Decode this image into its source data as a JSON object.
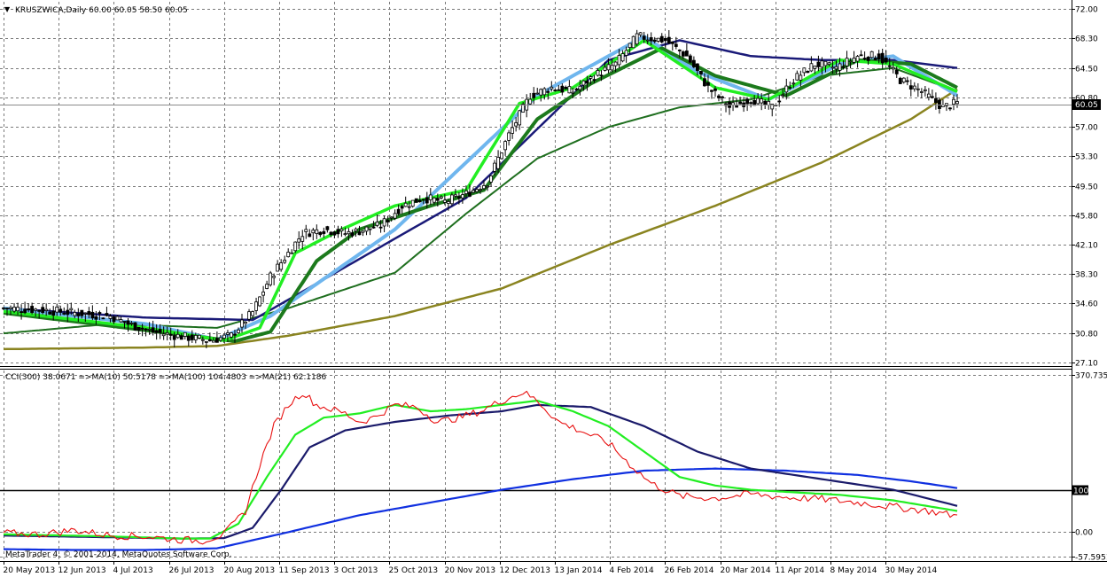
{
  "header": {
    "symbol_line": "KRUSZWICA,Daily  60.00 60.05 58.50 60.05"
  },
  "indicator_header": "CCI(300) 38.0671  =>MA(10) 50.5178  =>MA(100) 104.4803  =>MA(21) 62.1186",
  "copyright": "MetaTrader 4, © 2001-2014, MetaQuotes Software Corp.",
  "colors": {
    "background": "#ffffff",
    "candle": "#000000",
    "ma_fast_light": "#22ee22",
    "ma_fast_dark": "#1c7a1c",
    "ma_mid_green": "#1f6f1f",
    "ma_long_olive": "#8a8420",
    "ma_lightblue": "#6fb6ee",
    "ma_navy": "#1a1a78",
    "cci_line": "#e81010",
    "cci_ma10": "#22ee22",
    "cci_ma21": "#1a1a6a",
    "cci_ma100": "#1030e0"
  },
  "chart_data": [
    {
      "type": "candlestick",
      "title": "KRUSZWICA,Daily",
      "ohlc_last": {
        "open": 60.0,
        "high": 60.05,
        "low": 58.5,
        "close": 60.05
      },
      "current_price": "60.05",
      "ylim": [
        27.1,
        72.0
      ],
      "y_ticks": [
        "72.00",
        "68.30",
        "64.50",
        "60.80",
        "57.00",
        "53.30",
        "49.50",
        "45.80",
        "42.10",
        "38.30",
        "34.60",
        "30.80",
        "27.10"
      ],
      "x_tick_labels": [
        "20 May 2013",
        "12 Jun 2013",
        "4 Jul 2013",
        "26 Jul 2013",
        "20 Aug 2013",
        "11 Sep 2013",
        "3 Oct 2013",
        "25 Oct 2013",
        "20 Nov 2013",
        "12 Dec 2013",
        "13 Jan 2014",
        "4 Feb 2014",
        "26 Feb 2014",
        "20 Mar 2014",
        "11 Apr 2014",
        "8 May 2014",
        "30 May 2014"
      ],
      "series": [
        {
          "name": "price",
          "kind": "close_approx",
          "bars": 269,
          "anchors": [
            [
              0,
              34.0
            ],
            [
              10,
              33.8
            ],
            [
              20,
              33.4
            ],
            [
              30,
              33.0
            ],
            [
              35,
              32.0
            ],
            [
              42,
              31.0
            ],
            [
              50,
              30.4
            ],
            [
              58,
              29.9
            ],
            [
              64,
              30.5
            ],
            [
              70,
              33.5
            ],
            [
              75,
              38.0
            ],
            [
              80,
              41.0
            ],
            [
              84,
              43.5
            ],
            [
              90,
              44.0
            ],
            [
              96,
              43.5
            ],
            [
              100,
              43.8
            ],
            [
              106,
              44.5
            ],
            [
              112,
              47.0
            ],
            [
              118,
              48.0
            ],
            [
              124,
              47.5
            ],
            [
              130,
              48.5
            ],
            [
              136,
              50.0
            ],
            [
              142,
              56.0
            ],
            [
              148,
              61.0
            ],
            [
              154,
              62.0
            ],
            [
              160,
              61.5
            ],
            [
              166,
              63.5
            ],
            [
              172,
              65.0
            ],
            [
              178,
              68.5
            ],
            [
              186,
              68.0
            ],
            [
              192,
              66.0
            ],
            [
              198,
              62.0
            ],
            [
              204,
              59.5
            ],
            [
              210,
              60.5
            ],
            [
              216,
              59.5
            ],
            [
              222,
              63.0
            ],
            [
              228,
              65.0
            ],
            [
              234,
              64.5
            ],
            [
              240,
              66.0
            ],
            [
              246,
              66.0
            ],
            [
              252,
              63.0
            ],
            [
              258,
              61.5
            ],
            [
              264,
              59.5
            ],
            [
              268,
              60.05
            ]
          ]
        },
        {
          "name": "ma_navy",
          "anchors": [
            [
              0,
              34.0
            ],
            [
              40,
              32.8
            ],
            [
              70,
              32.5
            ],
            [
              72,
              33.0
            ],
            [
              130,
              48.0
            ],
            [
              170,
              65.5
            ],
            [
              190,
              68.0
            ],
            [
              210,
              66.0
            ],
            [
              230,
              65.5
            ],
            [
              250,
              65.5
            ],
            [
              268,
              64.5
            ]
          ]
        },
        {
          "name": "ma_lightblue",
          "anchors": [
            [
              0,
              34.0
            ],
            [
              40,
              32.0
            ],
            [
              60,
              30.0
            ],
            [
              75,
              33.0
            ],
            [
              110,
              44.0
            ],
            [
              150,
              61.0
            ],
            [
              180,
              68.5
            ],
            [
              195,
              64.0
            ],
            [
              215,
              60.5
            ],
            [
              235,
              65.0
            ],
            [
              250,
              66.0
            ],
            [
              268,
              61.0
            ]
          ]
        },
        {
          "name": "ma_fast_light",
          "anchors": [
            [
              0,
              33.6
            ],
            [
              40,
              31.5
            ],
            [
              62,
              29.9
            ],
            [
              72,
              31.5
            ],
            [
              82,
              41.0
            ],
            [
              95,
              44.0
            ],
            [
              110,
              47.0
            ],
            [
              130,
              49.0
            ],
            [
              145,
              60.0
            ],
            [
              160,
              62.0
            ],
            [
              180,
              68.0
            ],
            [
              200,
              62.0
            ],
            [
              215,
              60.5
            ],
            [
              235,
              65.5
            ],
            [
              250,
              65.0
            ],
            [
              268,
              61.5
            ]
          ]
        },
        {
          "name": "ma_fast_dark",
          "anchors": [
            [
              0,
              33.4
            ],
            [
              40,
              31.2
            ],
            [
              65,
              29.8
            ],
            [
              75,
              31.0
            ],
            [
              88,
              40.0
            ],
            [
              100,
              44.0
            ],
            [
              120,
              47.0
            ],
            [
              135,
              49.0
            ],
            [
              150,
              58.0
            ],
            [
              165,
              62.5
            ],
            [
              185,
              67.0
            ],
            [
              200,
              63.5
            ],
            [
              220,
              61.0
            ],
            [
              240,
              65.5
            ],
            [
              255,
              65.0
            ],
            [
              268,
              62.0
            ]
          ]
        },
        {
          "name": "ma_mid_green",
          "anchors": [
            [
              0,
              30.8
            ],
            [
              30,
              32.0
            ],
            [
              60,
              31.5
            ],
            [
              80,
              34.0
            ],
            [
              110,
              38.5
            ],
            [
              130,
              46.0
            ],
            [
              150,
              53.0
            ],
            [
              170,
              57.0
            ],
            [
              190,
              59.5
            ],
            [
              210,
              60.5
            ],
            [
              230,
              63.5
            ],
            [
              250,
              64.5
            ],
            [
              268,
              61.5
            ]
          ]
        },
        {
          "name": "ma_long_olive",
          "anchors": [
            [
              0,
              28.8
            ],
            [
              40,
              29.0
            ],
            [
              60,
              29.2
            ],
            [
              80,
              30.5
            ],
            [
              110,
              33.0
            ],
            [
              140,
              36.5
            ],
            [
              170,
              42.0
            ],
            [
              200,
              47.0
            ],
            [
              230,
              52.5
            ],
            [
              255,
              58.0
            ],
            [
              268,
              61.8
            ]
          ]
        }
      ]
    },
    {
      "type": "line",
      "title": "CCI(300) 38.0671  =>MA(10) 50.5178  =>MA(100) 104.4803  =>MA(21) 62.1186",
      "ylim": [
        -57.5951,
        370.7355
      ],
      "y_ticks": [
        "370.7355",
        "100",
        "0.00",
        "-57.5951"
      ],
      "level_line": 100,
      "series": [
        {
          "name": "CCI(300)",
          "anchors": [
            [
              0,
              -2
            ],
            [
              10,
              -5
            ],
            [
              20,
              5
            ],
            [
              30,
              -8
            ],
            [
              40,
              -10
            ],
            [
              50,
              -18
            ],
            [
              56,
              -20
            ],
            [
              62,
              -5
            ],
            [
              68,
              50
            ],
            [
              72,
              160
            ],
            [
              76,
              250
            ],
            [
              80,
              300
            ],
            [
              84,
              330
            ],
            [
              88,
              300
            ],
            [
              92,
              290
            ],
            [
              96,
              280
            ],
            [
              100,
              260
            ],
            [
              104,
              270
            ],
            [
              110,
              300
            ],
            [
              116,
              295
            ],
            [
              122,
              260
            ],
            [
              128,
              270
            ],
            [
              134,
              285
            ],
            [
              140,
              310
            ],
            [
              146,
              330
            ],
            [
              150,
              310
            ],
            [
              156,
              260
            ],
            [
              162,
              240
            ],
            [
              170,
              210
            ],
            [
              176,
              160
            ],
            [
              182,
              115
            ],
            [
              190,
              85
            ],
            [
              200,
              80
            ],
            [
              210,
              90
            ],
            [
              220,
              82
            ],
            [
              230,
              78
            ],
            [
              240,
              70
            ],
            [
              250,
              60
            ],
            [
              260,
              50
            ],
            [
              268,
              38
            ]
          ]
        },
        {
          "name": "MA(10)",
          "anchors": [
            [
              0,
              -5
            ],
            [
              30,
              -10
            ],
            [
              50,
              -15
            ],
            [
              58,
              -15
            ],
            [
              66,
              20
            ],
            [
              74,
              130
            ],
            [
              82,
              230
            ],
            [
              90,
              270
            ],
            [
              100,
              280
            ],
            [
              110,
              300
            ],
            [
              120,
              285
            ],
            [
              130,
              290
            ],
            [
              140,
              300
            ],
            [
              150,
              310
            ],
            [
              160,
              285
            ],
            [
              170,
              250
            ],
            [
              180,
              190
            ],
            [
              190,
              130
            ],
            [
              200,
              110
            ],
            [
              210,
              100
            ],
            [
              220,
              95
            ],
            [
              235,
              88
            ],
            [
              250,
              75
            ],
            [
              268,
              50
            ]
          ]
        },
        {
          "name": "MA(21)",
          "anchors": [
            [
              0,
              -8
            ],
            [
              30,
              -12
            ],
            [
              50,
              -15
            ],
            [
              62,
              -14
            ],
            [
              70,
              10
            ],
            [
              78,
              100
            ],
            [
              86,
              200
            ],
            [
              96,
              240
            ],
            [
              110,
              260
            ],
            [
              125,
              275
            ],
            [
              140,
              285
            ],
            [
              150,
              300
            ],
            [
              165,
              295
            ],
            [
              180,
              250
            ],
            [
              195,
              190
            ],
            [
              210,
              150
            ],
            [
              230,
              125
            ],
            [
              250,
              100
            ],
            [
              268,
              62
            ]
          ]
        },
        {
          "name": "MA(100)",
          "anchors": [
            [
              0,
              -40
            ],
            [
              20,
              -42
            ],
            [
              40,
              -42
            ],
            [
              60,
              -38
            ],
            [
              80,
              0
            ],
            [
              100,
              40
            ],
            [
              120,
              70
            ],
            [
              140,
              100
            ],
            [
              160,
              125
            ],
            [
              180,
              145
            ],
            [
              200,
              150
            ],
            [
              220,
              145
            ],
            [
              240,
              135
            ],
            [
              255,
              120
            ],
            [
              268,
              104
            ]
          ]
        }
      ]
    }
  ]
}
